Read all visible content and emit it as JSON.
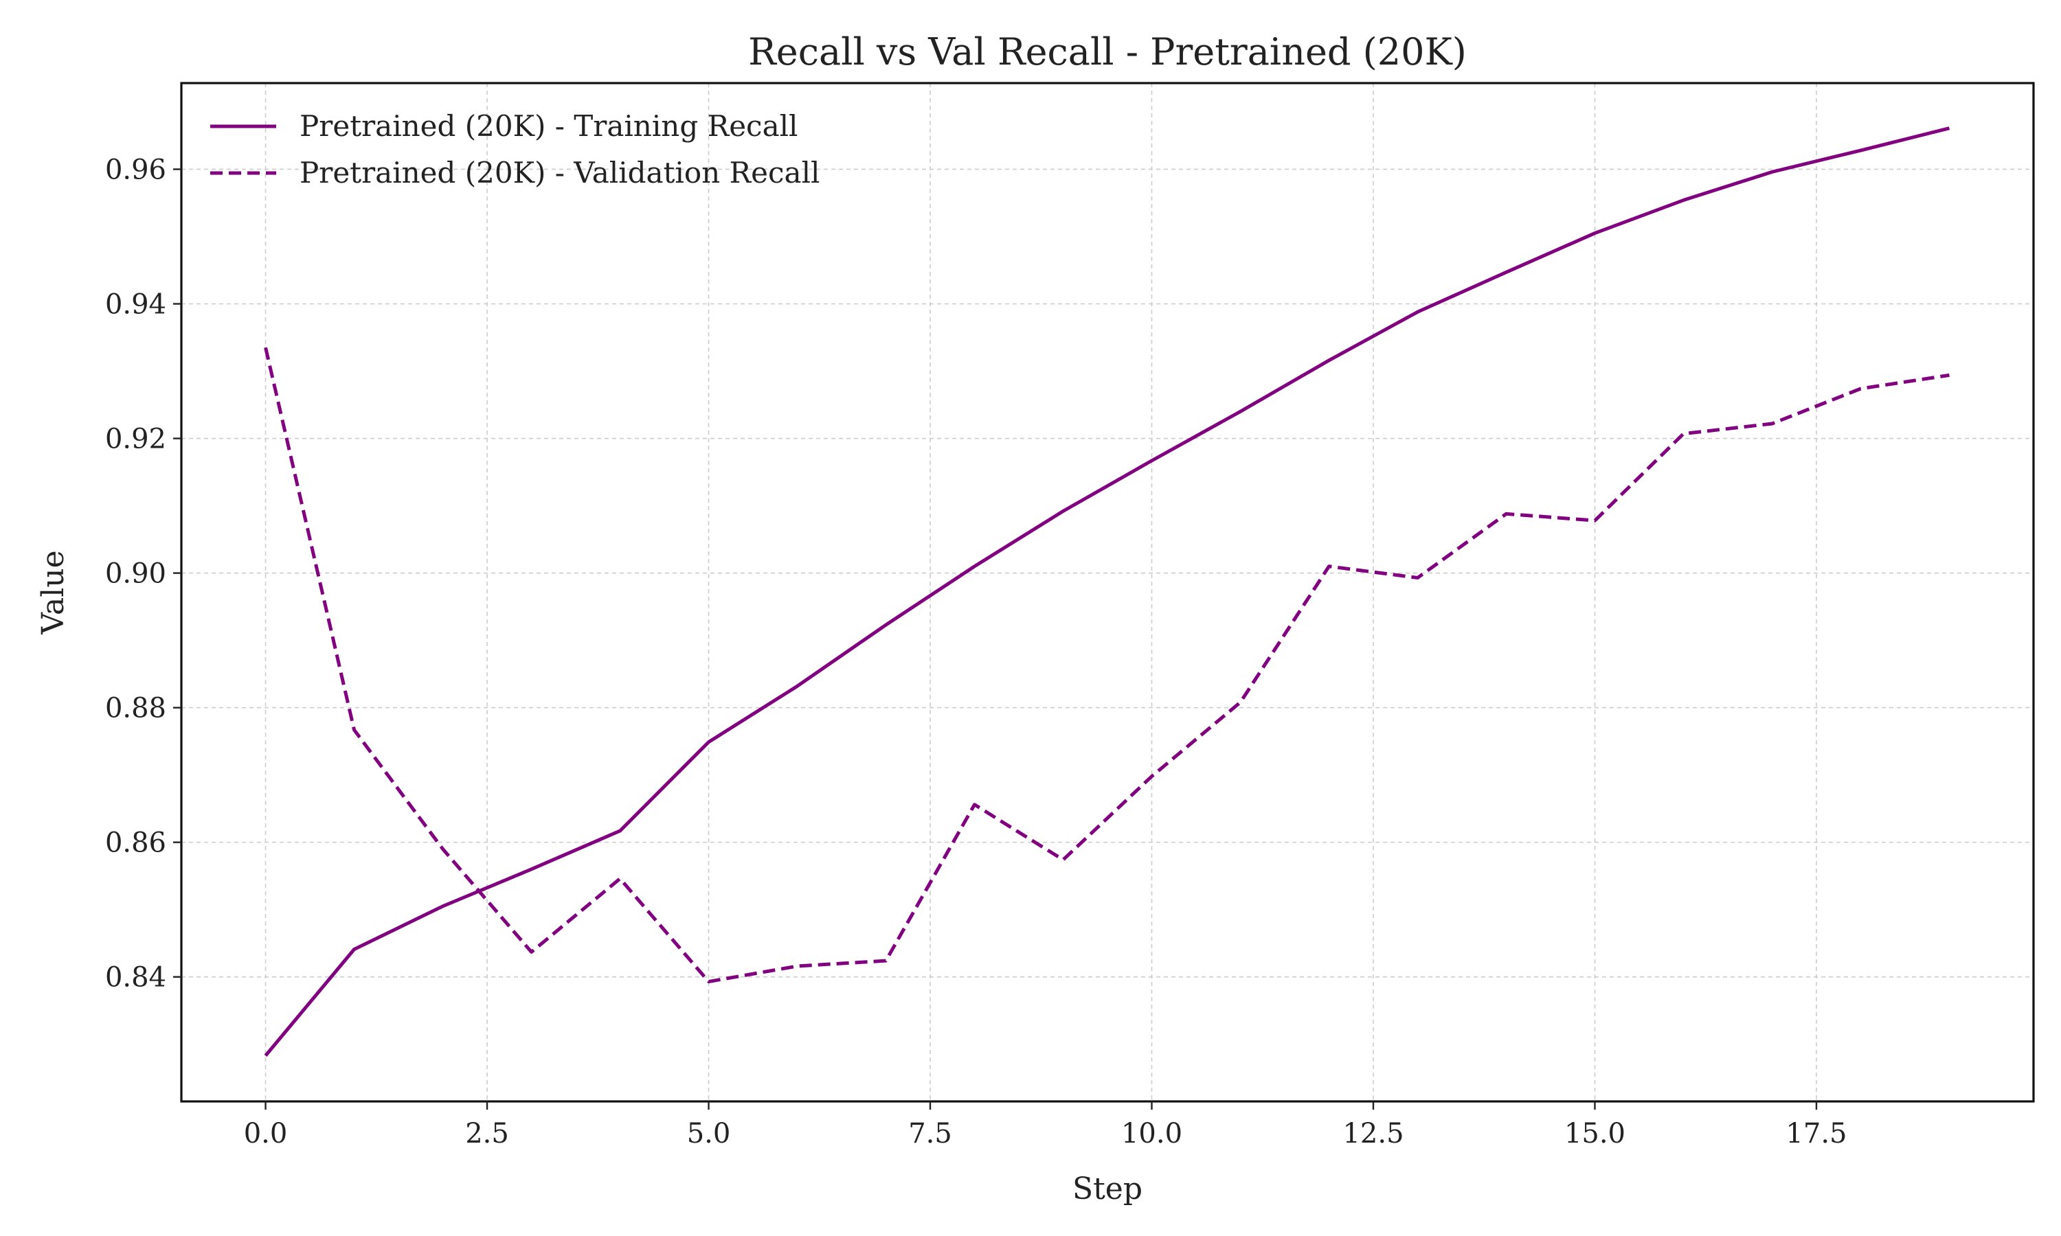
{
  "colors": {
    "series": "#800080"
  },
  "chart_data": {
    "type": "line",
    "title": "Recall vs Val Recall - Pretrained (20K)",
    "xlabel": "Step",
    "ylabel": "Value",
    "xlim": [
      -0.95,
      19.95
    ],
    "ylim": [
      0.8215,
      0.9728
    ],
    "xticks": [
      0.0,
      2.5,
      5.0,
      7.5,
      10.0,
      12.5,
      15.0,
      17.5
    ],
    "xtick_labels": [
      "0.0",
      "2.5",
      "5.0",
      "7.5",
      "10.0",
      "12.5",
      "15.0",
      "17.5"
    ],
    "yticks": [
      0.84,
      0.86,
      0.88,
      0.9,
      0.92,
      0.94,
      0.96
    ],
    "ytick_labels": [
      "0.84",
      "0.86",
      "0.88",
      "0.90",
      "0.92",
      "0.94",
      "0.96"
    ],
    "grid": true,
    "legend": "upper-left",
    "x": [
      0,
      1,
      2,
      3,
      4,
      5,
      6,
      7,
      8,
      9,
      10,
      11,
      12,
      13,
      14,
      15,
      16,
      17,
      18,
      19
    ],
    "series": [
      {
        "name": "Pretrained (20K) - Training Recall",
        "style": "solid",
        "values": [
          0.8283,
          0.8441,
          0.8505,
          0.856,
          0.8617,
          0.8749,
          0.8832,
          0.8923,
          0.901,
          0.9092,
          0.9167,
          0.924,
          0.9316,
          0.9388,
          0.9447,
          0.9505,
          0.9554,
          0.9596,
          0.9628,
          0.9661
        ]
      },
      {
        "name": "Pretrained (20K) - Validation Recall",
        "style": "dashed",
        "values": [
          0.9335,
          0.8767,
          0.859,
          0.8437,
          0.8546,
          0.8393,
          0.8416,
          0.8424,
          0.8656,
          0.8574,
          0.8698,
          0.8808,
          0.901,
          0.8993,
          0.9088,
          0.9078,
          0.9207,
          0.9222,
          0.9274,
          0.9294
        ]
      }
    ]
  }
}
